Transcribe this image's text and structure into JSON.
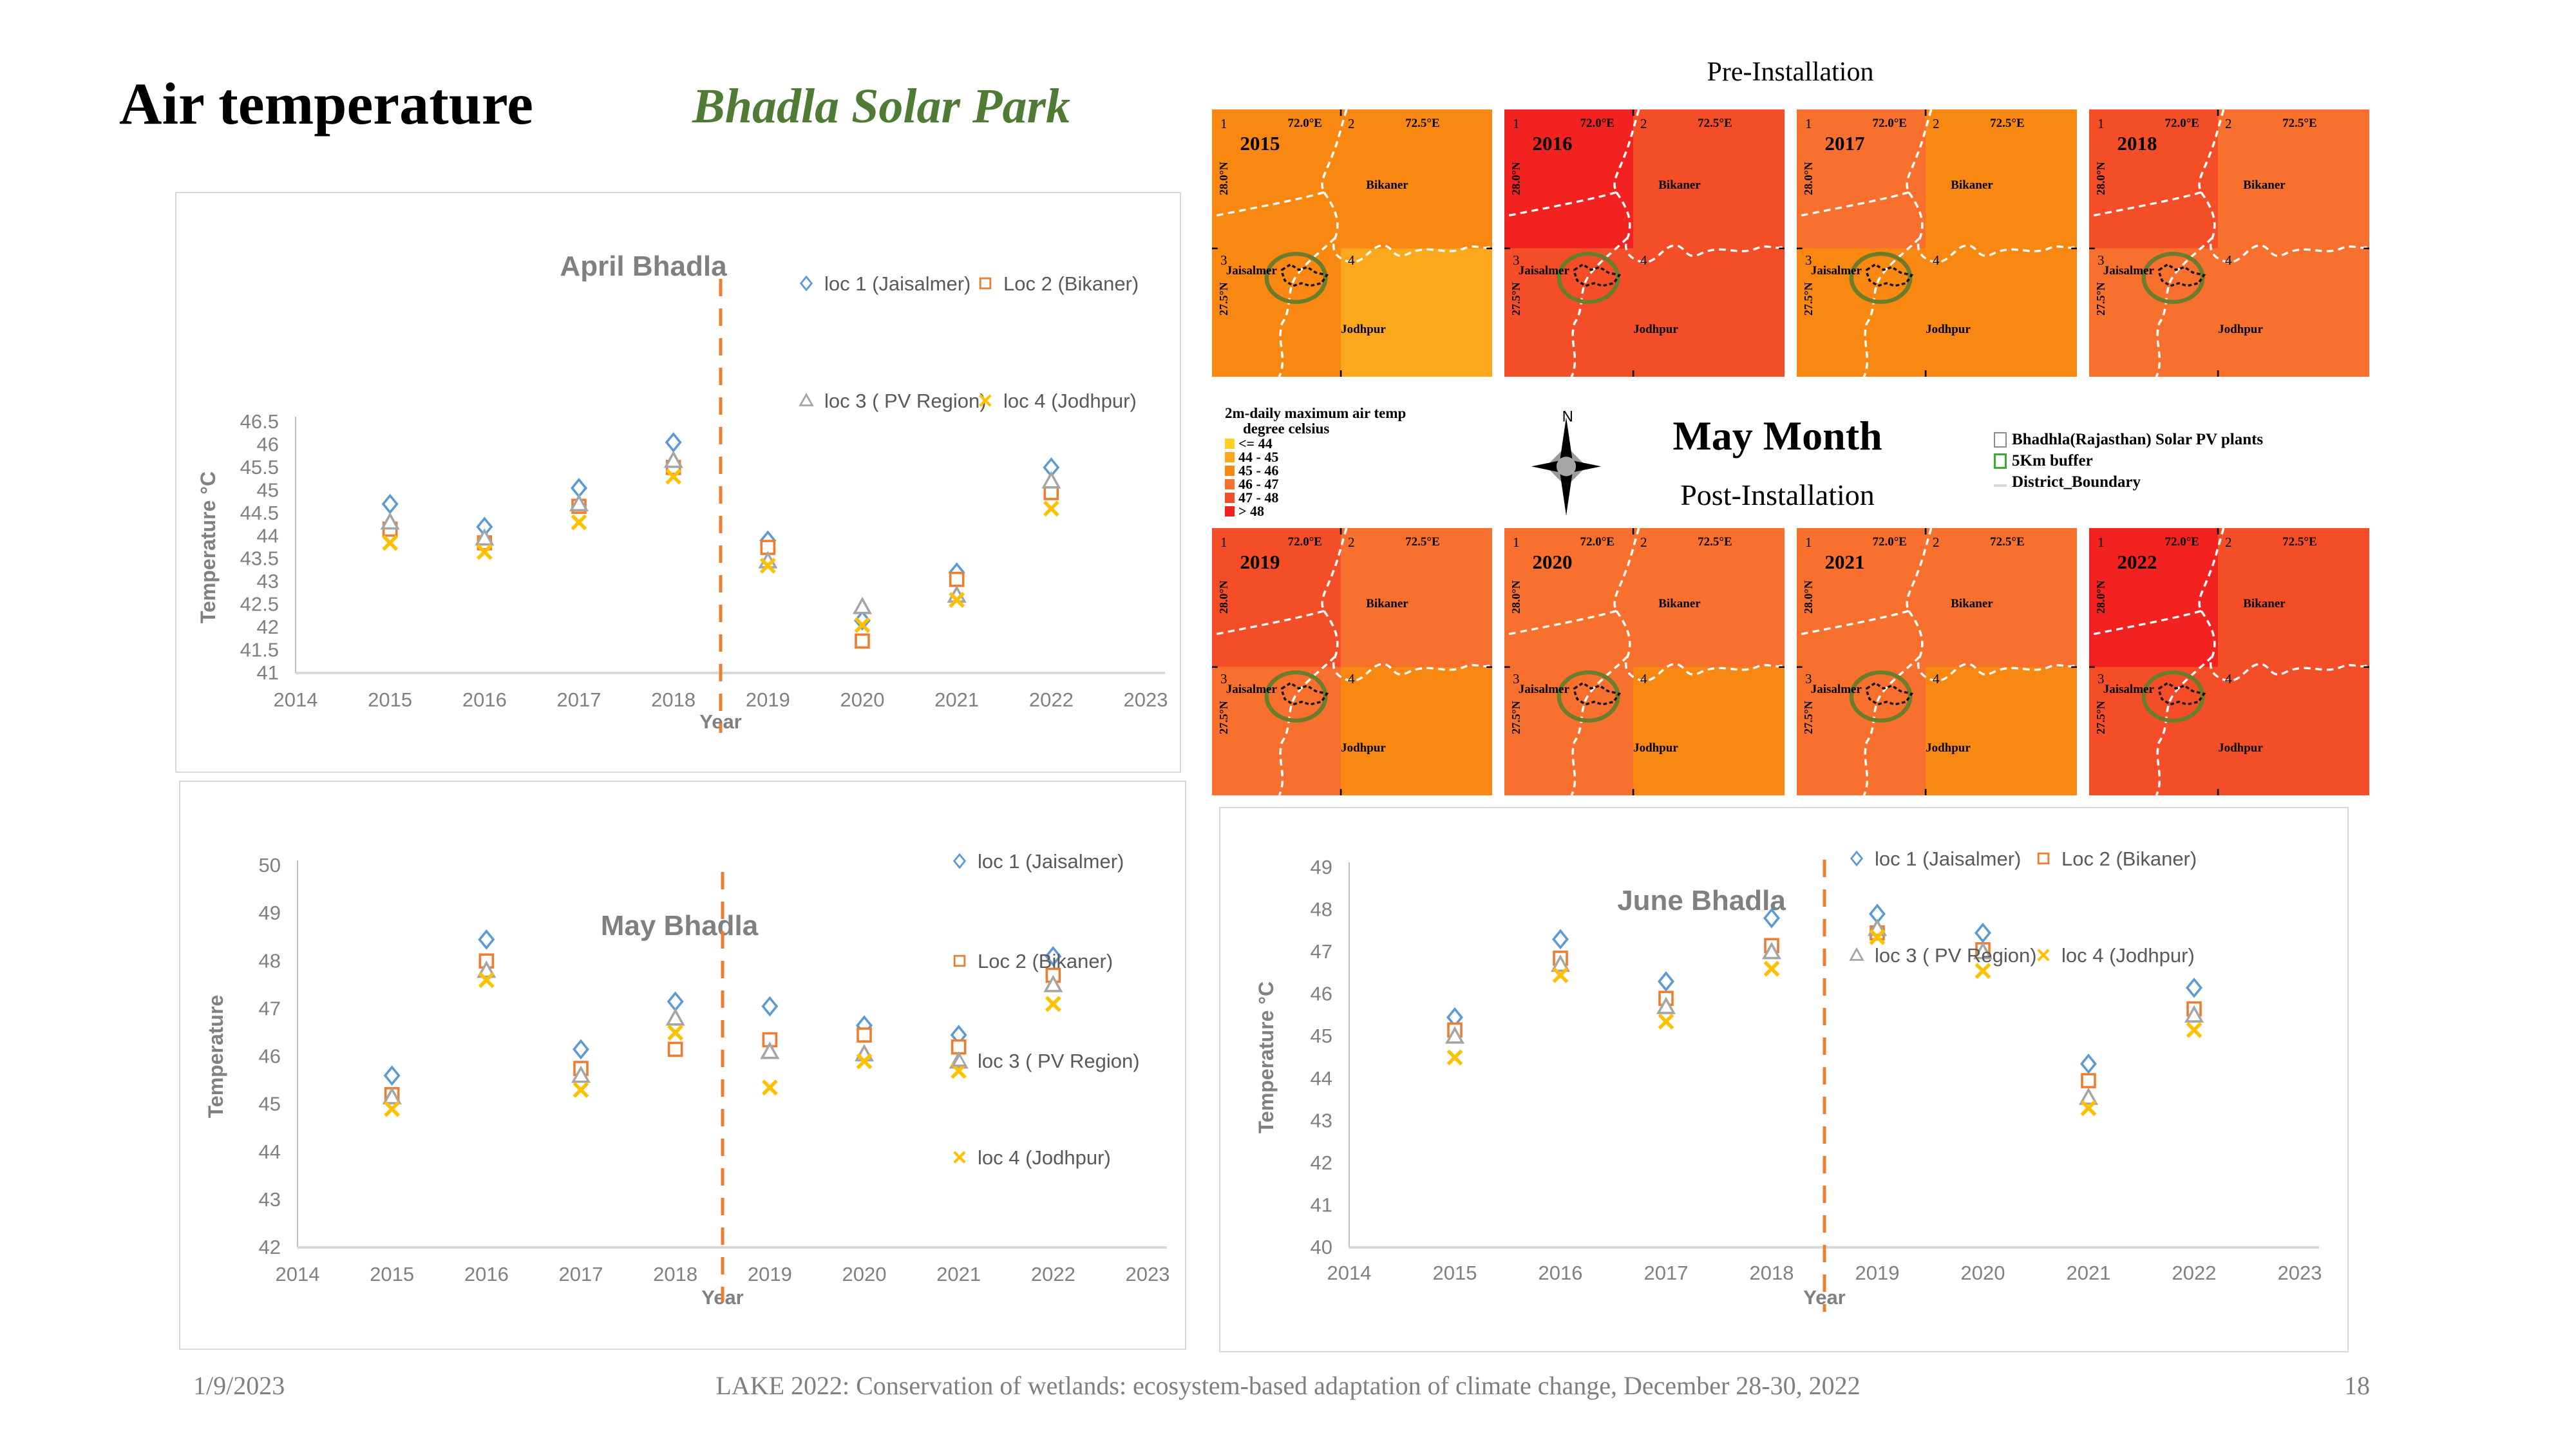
{
  "slide": {
    "title": "Air temperature",
    "subtitle": "Bhadla Solar Park",
    "footer": {
      "date": "1/9/2023",
      "center": "LAKE 2022: Conservation of wetlands: ecosystem-based adaptation of climate change, December 28-30, 2022",
      "page": "18"
    }
  },
  "maps": {
    "pre_label": "Pre-Installation",
    "post_label": "Post-Installation",
    "month_label": "May Month",
    "compass_north": "N",
    "temp_legend": {
      "title_line1": "2m-daily maximum air temp",
      "title_line2": "degree celsius",
      "classes": [
        {
          "label": "<= 44",
          "color": "#ffd21f"
        },
        {
          "label": "44 - 45",
          "color": "#fba81c"
        },
        {
          "label": "45 - 46",
          "color": "#f98812"
        },
        {
          "label": "46 - 47",
          "color": "#f8702d"
        },
        {
          "label": "47 - 48",
          "color": "#f44e29"
        },
        {
          "label": "> 48",
          "color": "#f1221f"
        }
      ]
    },
    "overlay_legend": [
      {
        "label": "Bhadhla(Rajasthan) Solar PV plants",
        "swatch": "sw-pv"
      },
      {
        "label": "5Km buffer",
        "swatch": "sw-buffer"
      },
      {
        "label": "District_Boundary",
        "swatch": "sw-boundary"
      }
    ],
    "panel_labels": {
      "lon1": "72.0°E",
      "lon2": "72.5°E",
      "lat1": "28.0°N",
      "lat2": "27.5°N",
      "q1": "1",
      "q2": "2",
      "q3": "3",
      "q4": "4",
      "region_ne": "Bikaner",
      "region_w": "Jaisalmer",
      "region_s": "Jodhpur"
    },
    "panels": [
      {
        "year": "2015",
        "row": "pre",
        "quadrant_colors": [
          "#f98812",
          "#f98812",
          "#f98812",
          "#fba81c"
        ]
      },
      {
        "year": "2016",
        "row": "pre",
        "quadrant_colors": [
          "#f1221f",
          "#f44e29",
          "#f44e29",
          "#f44e29"
        ]
      },
      {
        "year": "2017",
        "row": "pre",
        "quadrant_colors": [
          "#f8702d",
          "#f98812",
          "#f98812",
          "#f98812"
        ]
      },
      {
        "year": "2018",
        "row": "pre",
        "quadrant_colors": [
          "#f44e29",
          "#f8702d",
          "#f8702d",
          "#f8702d"
        ]
      },
      {
        "year": "2019",
        "row": "post",
        "quadrant_colors": [
          "#f44e29",
          "#f8702d",
          "#f8702d",
          "#f98812"
        ]
      },
      {
        "year": "2020",
        "row": "post",
        "quadrant_colors": [
          "#f8702d",
          "#f8702d",
          "#f8702d",
          "#f98812"
        ]
      },
      {
        "year": "2021",
        "row": "post",
        "quadrant_colors": [
          "#f8702d",
          "#f8702d",
          "#f8702d",
          "#f98812"
        ]
      },
      {
        "year": "2022",
        "row": "post",
        "quadrant_colors": [
          "#f1221f",
          "#f44e29",
          "#f44e29",
          "#f44e29"
        ]
      }
    ]
  },
  "chart_data": [
    {
      "type": "scatter",
      "title": "April Bhadla",
      "xlabel": "Year",
      "ylabel": "Temperature °C",
      "x": [
        2015,
        2016,
        2017,
        2018,
        2019,
        2020,
        2021,
        2022
      ],
      "xticks": [
        2014,
        2015,
        2016,
        2017,
        2018,
        2019,
        2020,
        2021,
        2022,
        2023
      ],
      "xlim": [
        2014,
        2023
      ],
      "ylim": [
        41,
        46.5
      ],
      "ytick_step": 0.5,
      "grid": false,
      "legend_position": "top-right",
      "annotation": "orange dashed vertical line at x = 2018.5",
      "series": [
        {
          "name": "loc 1 (Jaisalmer)",
          "marker": "diamond",
          "color": "#5b9bd5",
          "values": [
            44.7,
            44.2,
            45.05,
            46.05,
            43.9,
            42.15,
            43.2,
            45.5
          ]
        },
        {
          "name": "Loc 2 (Bikaner)",
          "marker": "square",
          "color": "#ed7d31",
          "values": [
            44.15,
            43.85,
            44.65,
            45.5,
            43.75,
            41.7,
            43.05,
            44.95
          ]
        },
        {
          "name": "loc 3 ( PV Region)",
          "marker": "triangle",
          "color": "#a5a5a5",
          "values": [
            44.3,
            43.95,
            44.7,
            45.65,
            43.45,
            42.45,
            42.7,
            45.2
          ]
        },
        {
          "name": "loc 4 (Jodhpur)",
          "marker": "x",
          "color": "#ffc000",
          "values": [
            43.85,
            43.65,
            44.3,
            45.3,
            43.35,
            42.05,
            42.6,
            44.6
          ]
        }
      ]
    },
    {
      "type": "scatter",
      "title": "May Bhadla",
      "xlabel": "Year",
      "ylabel": "Temperature",
      "x": [
        2015,
        2016,
        2017,
        2018,
        2019,
        2020,
        2021,
        2022
      ],
      "xticks": [
        2014,
        2015,
        2016,
        2017,
        2018,
        2019,
        2020,
        2021,
        2022,
        2023
      ],
      "xlim": [
        2014,
        2023
      ],
      "ylim": [
        42,
        50
      ],
      "ytick_step": 1,
      "grid": false,
      "legend_position": "top-right-vertical",
      "annotation": "orange dashed vertical line at x = 2018.5",
      "series": [
        {
          "name": "loc 1 (Jaisalmer)",
          "marker": "diamond",
          "color": "#5b9bd5",
          "values": [
            45.6,
            48.45,
            46.15,
            47.15,
            47.05,
            46.65,
            46.45,
            48.1
          ]
        },
        {
          "name": "Loc 2 (Bikaner)",
          "marker": "square",
          "color": "#ed7d31",
          "values": [
            45.2,
            48.0,
            45.75,
            46.15,
            46.35,
            46.45,
            46.2,
            47.7
          ]
        },
        {
          "name": "loc 3 ( PV Region)",
          "marker": "triangle",
          "color": "#a5a5a5",
          "values": [
            45.15,
            47.8,
            45.6,
            46.8,
            46.1,
            46.05,
            45.9,
            47.5
          ]
        },
        {
          "name": "loc 4 (Jodhpur)",
          "marker": "x",
          "color": "#ffc000",
          "values": [
            44.9,
            47.6,
            45.3,
            46.5,
            45.35,
            45.9,
            45.7,
            47.1
          ]
        }
      ]
    },
    {
      "type": "scatter",
      "title": "June Bhadla",
      "xlabel": "Year",
      "ylabel": "Temperature °C",
      "x": [
        2015,
        2016,
        2017,
        2018,
        2019,
        2020,
        2021,
        2022
      ],
      "xticks": [
        2014,
        2015,
        2016,
        2017,
        2018,
        2019,
        2020,
        2021,
        2022,
        2023
      ],
      "xlim": [
        2014,
        2023
      ],
      "ylim": [
        40,
        49
      ],
      "ytick_step": 1,
      "grid": false,
      "legend_position": "top-right",
      "annotation": "orange dashed vertical line at x = 2018.5",
      "series": [
        {
          "name": "loc 1 (Jaisalmer)",
          "marker": "diamond",
          "color": "#5b9bd5",
          "values": [
            45.45,
            47.3,
            46.3,
            47.8,
            47.9,
            47.45,
            44.35,
            46.15
          ]
        },
        {
          "name": "Loc 2 (Bikaner)",
          "marker": "square",
          "color": "#ed7d31",
          "values": [
            45.15,
            46.85,
            45.9,
            47.15,
            47.45,
            47.05,
            43.95,
            45.65
          ]
        },
        {
          "name": "loc 3 ( PV Region)",
          "marker": "triangle",
          "color": "#a5a5a5",
          "values": [
            45.0,
            46.7,
            45.7,
            47.0,
            47.55,
            47.0,
            43.55,
            45.5
          ]
        },
        {
          "name": "loc 4 (Jodhpur)",
          "marker": "x",
          "color": "#ffc000",
          "values": [
            44.5,
            46.45,
            45.35,
            46.6,
            47.35,
            46.55,
            43.3,
            45.15
          ]
        }
      ]
    }
  ]
}
